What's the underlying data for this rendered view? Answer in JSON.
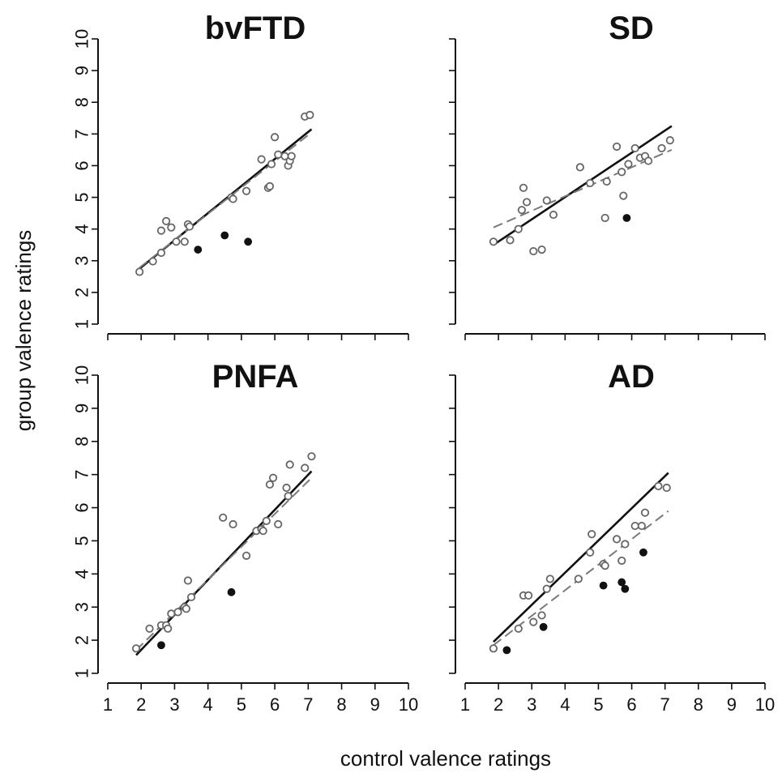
{
  "figure": {
    "xlabel": "control valence ratings",
    "ylabel": "group valence ratings"
  },
  "chart_data": [
    {
      "type": "scatter",
      "title": "bvFTD",
      "xlim": [
        1,
        10
      ],
      "ylim": [
        1,
        10
      ],
      "xticks": [
        "1",
        "2",
        "3",
        "4",
        "5",
        "6",
        "7",
        "8",
        "9",
        "10"
      ],
      "yticks": [
        "1",
        "2",
        "3",
        "4",
        "5",
        "6",
        "7",
        "8",
        "9",
        "10"
      ],
      "show_x_tick_labels": false,
      "show_y_tick_labels": true,
      "points_open": [
        [
          1.95,
          2.65
        ],
        [
          2.35,
          2.98
        ],
        [
          2.6,
          3.25
        ],
        [
          2.6,
          3.95
        ],
        [
          2.75,
          4.25
        ],
        [
          2.9,
          4.05
        ],
        [
          3.05,
          3.6
        ],
        [
          3.3,
          3.6
        ],
        [
          3.4,
          4.15
        ],
        [
          3.45,
          4.08
        ],
        [
          4.7,
          5.0
        ],
        [
          4.75,
          4.95
        ],
        [
          5.15,
          5.2
        ],
        [
          5.6,
          6.2
        ],
        [
          5.8,
          5.3
        ],
        [
          5.85,
          5.35
        ],
        [
          5.9,
          6.05
        ],
        [
          6.0,
          6.9
        ],
        [
          6.1,
          6.35
        ],
        [
          6.3,
          6.3
        ],
        [
          6.4,
          6.0
        ],
        [
          6.45,
          6.15
        ],
        [
          6.5,
          6.3
        ],
        [
          6.9,
          7.55
        ],
        [
          7.05,
          7.6
        ]
      ],
      "points_filled": [
        [
          3.7,
          3.35
        ],
        [
          4.5,
          3.8
        ],
        [
          5.2,
          3.6
        ]
      ],
      "lines": [
        {
          "style": "solid",
          "x": [
            1.95,
            7.1
          ],
          "y": [
            2.75,
            7.15
          ]
        },
        {
          "style": "dashed",
          "x": [
            1.95,
            7.1
          ],
          "y": [
            2.78,
            7.05
          ]
        }
      ]
    },
    {
      "type": "scatter",
      "title": "SD",
      "xlim": [
        1,
        10
      ],
      "ylim": [
        1,
        10
      ],
      "xticks": [
        "1",
        "2",
        "3",
        "4",
        "5",
        "6",
        "7",
        "8",
        "9",
        "10"
      ],
      "yticks": [
        "1",
        "2",
        "3",
        "4",
        "5",
        "6",
        "7",
        "8",
        "9",
        "10"
      ],
      "show_x_tick_labels": false,
      "show_y_tick_labels": false,
      "points_open": [
        [
          1.85,
          3.6
        ],
        [
          2.35,
          3.65
        ],
        [
          2.6,
          4.0
        ],
        [
          2.7,
          4.6
        ],
        [
          2.75,
          5.3
        ],
        [
          2.85,
          4.85
        ],
        [
          3.05,
          3.3
        ],
        [
          3.3,
          3.35
        ],
        [
          3.45,
          4.9
        ],
        [
          3.65,
          4.45
        ],
        [
          4.45,
          5.95
        ],
        [
          4.75,
          5.45
        ],
        [
          5.25,
          5.5
        ],
        [
          5.2,
          4.35
        ],
        [
          5.55,
          6.6
        ],
        [
          5.7,
          5.8
        ],
        [
          5.75,
          5.05
        ],
        [
          5.9,
          6.05
        ],
        [
          6.1,
          6.55
        ],
        [
          6.25,
          6.25
        ],
        [
          6.4,
          6.3
        ],
        [
          6.5,
          6.15
        ],
        [
          6.9,
          6.55
        ],
        [
          7.15,
          6.8
        ]
      ],
      "points_filled": [
        [
          5.85,
          4.35
        ]
      ],
      "lines": [
        {
          "style": "solid",
          "x": [
            1.85,
            7.2
          ],
          "y": [
            3.5,
            7.25
          ]
        },
        {
          "style": "dashed",
          "x": [
            1.85,
            7.2
          ],
          "y": [
            4.05,
            6.5
          ]
        }
      ]
    },
    {
      "type": "scatter",
      "title": "PNFA",
      "xlim": [
        1,
        10
      ],
      "ylim": [
        1,
        10
      ],
      "xticks": [
        "1",
        "2",
        "3",
        "4",
        "5",
        "6",
        "7",
        "8",
        "9",
        "10"
      ],
      "yticks": [
        "1",
        "2",
        "3",
        "4",
        "5",
        "6",
        "7",
        "8",
        "9",
        "10"
      ],
      "show_x_tick_labels": true,
      "show_y_tick_labels": true,
      "points_open": [
        [
          1.85,
          1.75
        ],
        [
          2.25,
          2.35
        ],
        [
          2.6,
          2.45
        ],
        [
          2.75,
          2.45
        ],
        [
          2.8,
          2.35
        ],
        [
          2.9,
          2.8
        ],
        [
          3.1,
          2.85
        ],
        [
          3.3,
          3.0
        ],
        [
          3.35,
          2.95
        ],
        [
          3.4,
          3.8
        ],
        [
          3.5,
          3.3
        ],
        [
          4.45,
          5.7
        ],
        [
          4.75,
          5.5
        ],
        [
          5.15,
          4.55
        ],
        [
          5.45,
          5.3
        ],
        [
          5.6,
          5.35
        ],
        [
          5.65,
          5.3
        ],
        [
          5.75,
          5.6
        ],
        [
          5.85,
          6.7
        ],
        [
          5.95,
          6.9
        ],
        [
          6.1,
          5.5
        ],
        [
          6.35,
          6.6
        ],
        [
          6.4,
          6.35
        ],
        [
          6.45,
          7.3
        ],
        [
          6.9,
          7.2
        ],
        [
          7.1,
          7.55
        ]
      ],
      "points_filled": [
        [
          2.6,
          1.85
        ],
        [
          4.7,
          3.45
        ]
      ],
      "lines": [
        {
          "style": "solid",
          "x": [
            1.85,
            7.1
          ],
          "y": [
            1.55,
            7.1
          ]
        },
        {
          "style": "dashed",
          "x": [
            1.85,
            7.1
          ],
          "y": [
            1.7,
            6.9
          ]
        }
      ]
    },
    {
      "type": "scatter",
      "title": "AD",
      "xlim": [
        1,
        10
      ],
      "ylim": [
        1,
        10
      ],
      "xticks": [
        "1",
        "2",
        "3",
        "4",
        "5",
        "6",
        "7",
        "8",
        "9",
        "10"
      ],
      "yticks": [
        "1",
        "2",
        "3",
        "4",
        "5",
        "6",
        "7",
        "8",
        "9",
        "10"
      ],
      "show_x_tick_labels": true,
      "show_y_tick_labels": false,
      "points_open": [
        [
          1.85,
          1.75
        ],
        [
          2.6,
          2.35
        ],
        [
          2.75,
          3.35
        ],
        [
          2.9,
          3.35
        ],
        [
          3.05,
          2.55
        ],
        [
          3.3,
          2.75
        ],
        [
          3.45,
          3.55
        ],
        [
          3.55,
          3.85
        ],
        [
          4.4,
          3.85
        ],
        [
          4.75,
          4.65
        ],
        [
          4.8,
          5.2
        ],
        [
          5.15,
          4.3
        ],
        [
          5.2,
          4.25
        ],
        [
          5.55,
          5.05
        ],
        [
          5.7,
          4.4
        ],
        [
          5.8,
          4.9
        ],
        [
          6.1,
          5.45
        ],
        [
          6.3,
          5.45
        ],
        [
          6.4,
          5.85
        ],
        [
          6.8,
          6.65
        ],
        [
          7.05,
          6.6
        ]
      ],
      "points_filled": [
        [
          2.25,
          1.7
        ],
        [
          3.35,
          2.4
        ],
        [
          5.15,
          3.65
        ],
        [
          5.7,
          3.75
        ],
        [
          5.8,
          3.55
        ],
        [
          6.35,
          4.65
        ]
      ],
      "lines": [
        {
          "style": "solid",
          "x": [
            1.85,
            7.1
          ],
          "y": [
            1.95,
            7.05
          ]
        },
        {
          "style": "dashed",
          "x": [
            1.85,
            7.1
          ],
          "y": [
            1.85,
            5.9
          ]
        }
      ]
    }
  ]
}
